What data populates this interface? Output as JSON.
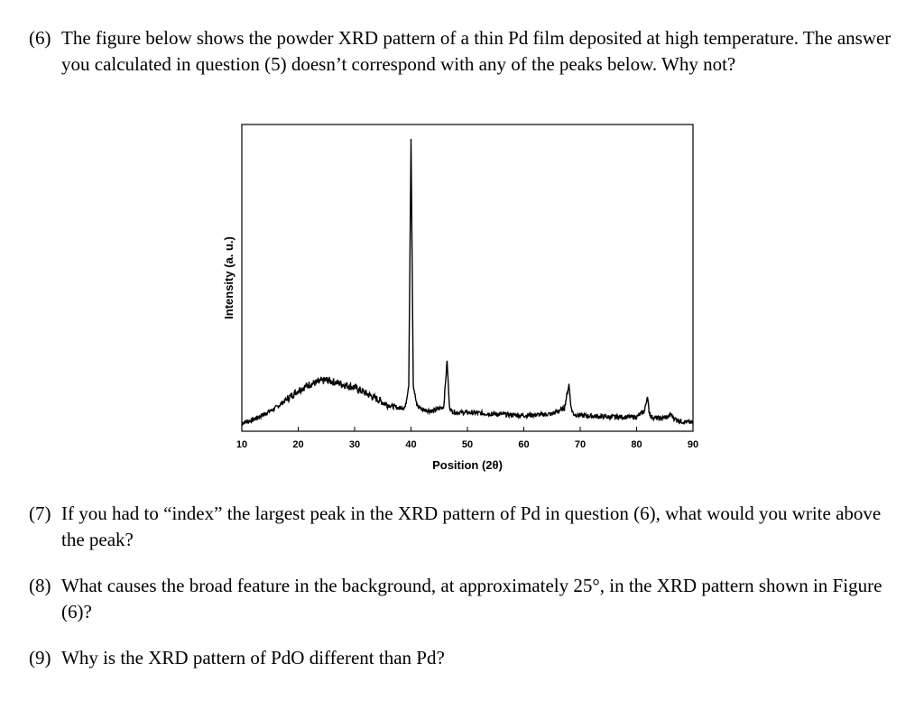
{
  "questions": [
    {
      "number": "(6)",
      "text": "The figure below shows the powder XRD pattern of a thin Pd film deposited at high temperature. The answer you calculated in question (5) doesn’t correspond with any of the peaks below.  Why not?"
    },
    {
      "number": "(7)",
      "text": "If you had to “index” the largest peak in the XRD pattern of Pd in question (6), what would you write above the peak?"
    },
    {
      "number": "(8)",
      "text": "What causes the broad feature in the background, at approximately 25°, in the XRD pattern shown in Figure (6)?"
    },
    {
      "number": "(9)",
      "text": "Why is the XRD pattern of PdO different than Pd?"
    }
  ],
  "chart_data": {
    "type": "line",
    "title": "",
    "xlabel": "Position (2θ)",
    "ylabel": "Intensity (a. u.)",
    "xlim": [
      10,
      90
    ],
    "ylim": [
      0,
      100
    ],
    "xticks": [
      "10",
      "20",
      "30",
      "40",
      "50",
      "60",
      "70",
      "80",
      "90"
    ],
    "grid": false,
    "series": [
      {
        "x": [
          10,
          12,
          14,
          16,
          18,
          20,
          22,
          24,
          25,
          26,
          28,
          30,
          32,
          34,
          36,
          38,
          39,
          39.6,
          40.0,
          40.4,
          41,
          42,
          44,
          45.8,
          46.4,
          46.8,
          47.2,
          48,
          50,
          55,
          60,
          65,
          67.2,
          68.0,
          68.4,
          68.8,
          70,
          75,
          80,
          81.4,
          81.9,
          82.2,
          82.6,
          84,
          85.6,
          86.1,
          86.6,
          88,
          90
        ],
        "y": [
          1,
          2,
          4,
          6,
          9,
          12,
          14,
          15,
          15.5,
          15,
          14,
          13,
          11,
          9,
          7,
          6,
          6.5,
          14,
          97,
          14,
          7,
          5.5,
          5,
          6.5,
          22,
          6.5,
          5,
          4.5,
          4.5,
          4,
          3.5,
          4,
          6,
          14,
          6,
          4,
          3.5,
          3,
          3,
          5,
          10,
          5,
          3,
          2.5,
          3,
          4,
          2.5,
          1.5,
          1
        ]
      }
    ]
  }
}
